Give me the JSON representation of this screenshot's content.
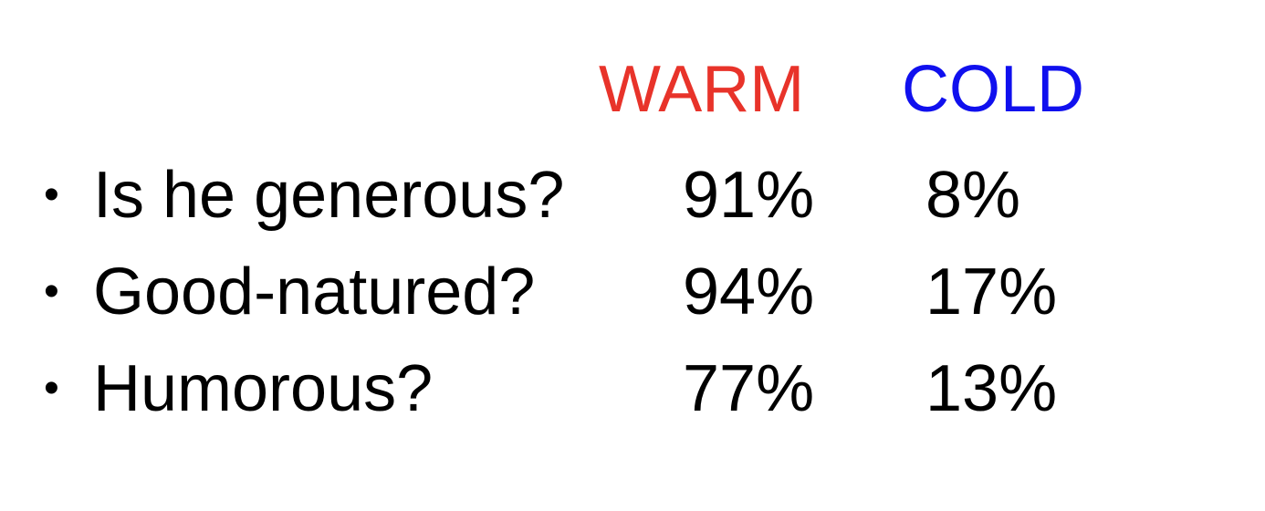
{
  "columns": {
    "warm": {
      "label": "WARM",
      "color": "#e8332a"
    },
    "cold": {
      "label": "COLD",
      "color": "#1010ee"
    }
  },
  "bullet_symbol": "•",
  "rows": [
    {
      "label": "Is he generous?",
      "warm": "91%",
      "cold": "8%"
    },
    {
      "label": "Good-natured?",
      "warm": "94%",
      "cold": "17%"
    },
    {
      "label": "Humorous?",
      "warm": "77%",
      "cold": "13%"
    }
  ]
}
